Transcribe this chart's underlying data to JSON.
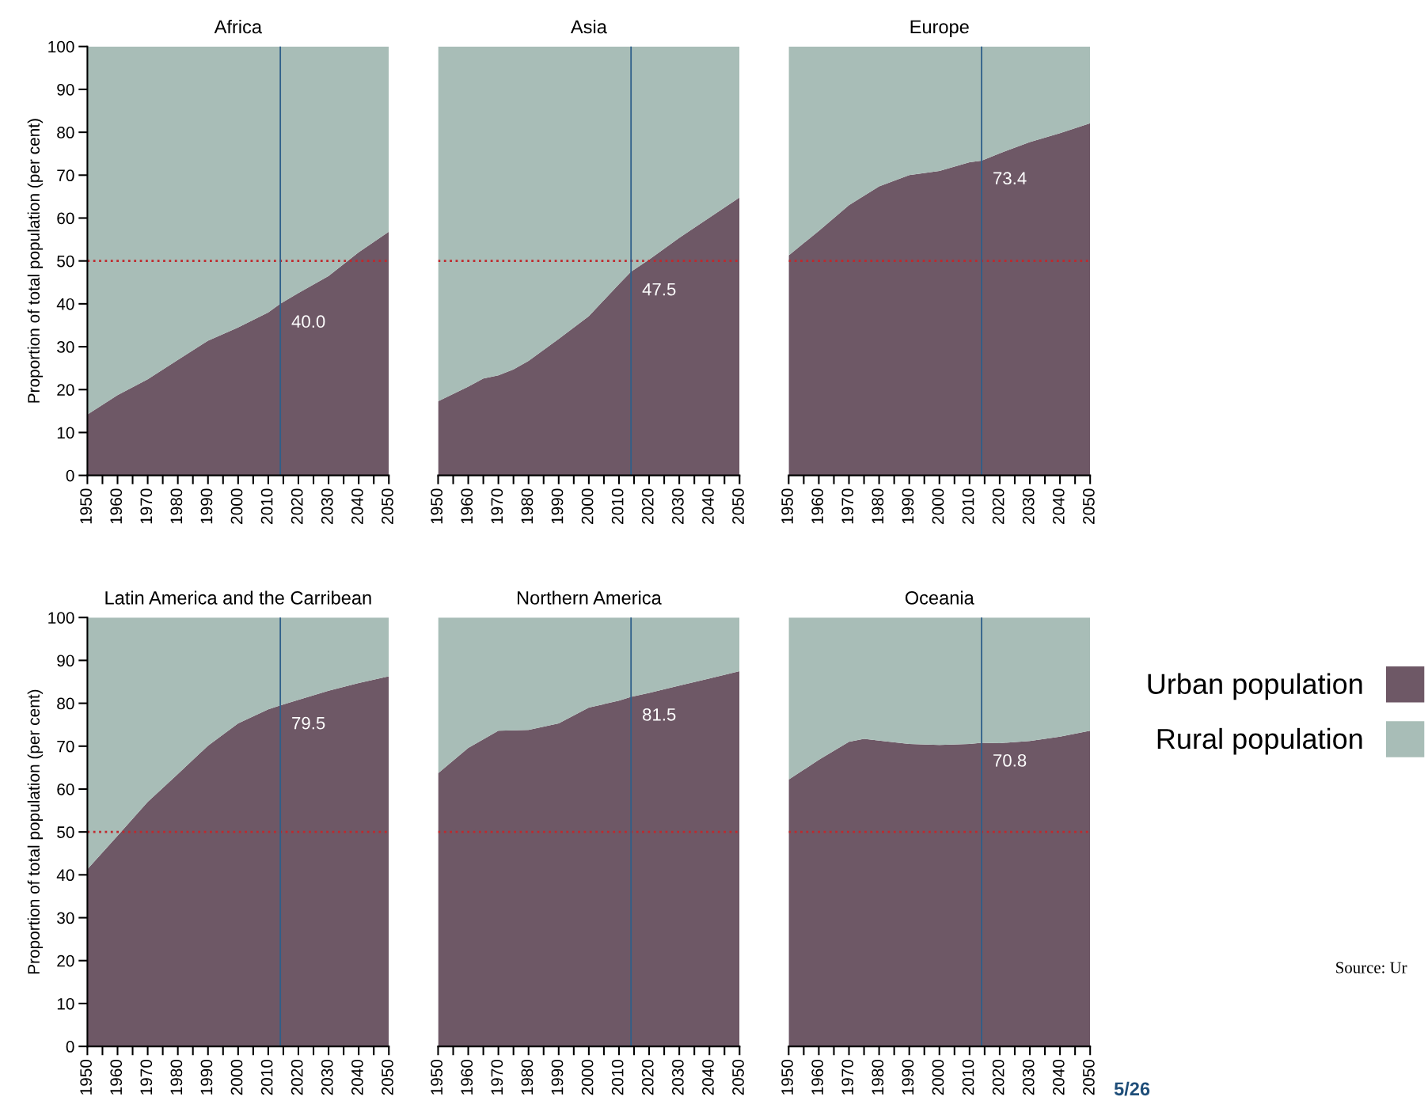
{
  "chart_data": [
    {
      "type": "area",
      "title": "Africa",
      "ylabel": "Proportion of total population (per cent)",
      "stacked": true,
      "legend": false,
      "x": [
        1950,
        1960,
        1970,
        1980,
        1990,
        2000,
        2010,
        2014,
        2020,
        2030,
        2040,
        2050
      ],
      "series": [
        {
          "color": "#6e5866",
          "values": [
            14.2,
            18.7,
            22.4,
            26.9,
            31.4,
            34.5,
            38.0,
            40.0,
            42.5,
            46.5,
            52.0,
            56.8
          ],
          "value_labels": [
            null,
            null,
            null,
            null,
            null,
            null,
            null,
            "40.0",
            null,
            null,
            null,
            null
          ]
        },
        {
          "color": "#a8bdb7",
          "values": [
            85.8,
            81.3,
            77.6,
            73.1,
            68.6,
            65.5,
            62.0,
            60.0,
            57.5,
            53.5,
            48.0,
            43.2
          ]
        }
      ],
      "xlim": [
        1950,
        2050
      ],
      "ylim": [
        0,
        100
      ],
      "xticks": [
        1950,
        {
          "value": 1955,
          "label": null
        },
        1960,
        {
          "value": 1965,
          "label": null
        },
        1970,
        {
          "value": 1975,
          "label": null
        },
        1980,
        {
          "value": 1985,
          "label": null
        },
        1990,
        {
          "value": 1995,
          "label": null
        },
        2000,
        {
          "value": 2005,
          "label": null
        },
        2010,
        {
          "value": 2015,
          "label": null
        },
        2020,
        {
          "value": 2025,
          "label": null
        },
        2030,
        {
          "value": 2035,
          "label": null
        },
        2040,
        {
          "value": 2045,
          "label": null
        },
        2050
      ],
      "yticks": [
        0,
        10,
        20,
        30,
        40,
        50,
        60,
        70,
        80,
        90,
        100
      ],
      "ref_lines": [
        {
          "axis": "y",
          "value": 50,
          "color": "#c0282d",
          "line_style": "dotted"
        },
        {
          "axis": "x",
          "value": 2014,
          "color": "#2f5f8a",
          "line_style": "solid"
        }
      ]
    },
    {
      "type": "area",
      "title": "Asia",
      "stacked": true,
      "legend": false,
      "tick_labels": "x",
      "x": [
        1950,
        1960,
        1965,
        1970,
        1975,
        1980,
        1990,
        2000,
        2010,
        2014,
        2020,
        2030,
        2040,
        2050
      ],
      "series": [
        {
          "color": "#6e5866",
          "values": [
            17.3,
            20.7,
            22.6,
            23.3,
            24.7,
            26.7,
            31.8,
            37.1,
            44.6,
            47.5,
            50.3,
            55.4,
            60.1,
            64.8
          ],
          "value_labels": [
            null,
            null,
            null,
            null,
            null,
            null,
            null,
            null,
            null,
            "47.5",
            null,
            null,
            null,
            null
          ]
        },
        {
          "color": "#a8bdb7",
          "values": [
            82.7,
            79.3,
            77.4,
            76.7,
            75.3,
            73.3,
            68.2,
            62.9,
            55.4,
            52.5,
            49.7,
            44.6,
            39.9,
            35.2
          ]
        }
      ],
      "xlim": [
        1950,
        2050
      ],
      "ylim": [
        0,
        100
      ],
      "xticks": [
        1950,
        {
          "value": 1955,
          "label": null
        },
        1960,
        {
          "value": 1965,
          "label": null
        },
        1970,
        {
          "value": 1975,
          "label": null
        },
        1980,
        {
          "value": 1985,
          "label": null
        },
        1990,
        {
          "value": 1995,
          "label": null
        },
        2000,
        {
          "value": 2005,
          "label": null
        },
        2010,
        {
          "value": 2015,
          "label": null
        },
        2020,
        {
          "value": 2025,
          "label": null
        },
        2030,
        {
          "value": 2035,
          "label": null
        },
        2040,
        {
          "value": 2045,
          "label": null
        },
        2050
      ],
      "ref_lines": [
        {
          "axis": "y",
          "value": 50,
          "color": "#c0282d",
          "line_style": "dotted"
        },
        {
          "axis": "x",
          "value": 2014,
          "color": "#2f5f8a",
          "line_style": "solid"
        }
      ]
    },
    {
      "type": "area",
      "title": "Europe",
      "stacked": true,
      "legend": false,
      "tick_labels": "x",
      "x": [
        1950,
        1960,
        1970,
        1980,
        1990,
        2000,
        2010,
        2014,
        2020,
        2030,
        2040,
        2050
      ],
      "series": [
        {
          "color": "#6e5866",
          "values": [
            51.3,
            57.0,
            63.0,
            67.4,
            70.0,
            71.0,
            73.0,
            73.4,
            75.1,
            77.7,
            79.8,
            82.1
          ],
          "value_labels": [
            null,
            null,
            null,
            null,
            null,
            null,
            null,
            "73.4",
            null,
            null,
            null,
            null
          ]
        },
        {
          "color": "#a8bdb7",
          "values": [
            48.7,
            43.0,
            37.0,
            32.6,
            30.0,
            29.0,
            27.0,
            26.6,
            24.9,
            22.3,
            20.2,
            17.9
          ]
        }
      ],
      "xlim": [
        1950,
        2050
      ],
      "ylim": [
        0,
        100
      ],
      "xticks": [
        1950,
        {
          "value": 1955,
          "label": null
        },
        1960,
        {
          "value": 1965,
          "label": null
        },
        1970,
        {
          "value": 1975,
          "label": null
        },
        1980,
        {
          "value": 1985,
          "label": null
        },
        1990,
        {
          "value": 1995,
          "label": null
        },
        2000,
        {
          "value": 2005,
          "label": null
        },
        2010,
        {
          "value": 2015,
          "label": null
        },
        2020,
        {
          "value": 2025,
          "label": null
        },
        2030,
        {
          "value": 2035,
          "label": null
        },
        2040,
        {
          "value": 2045,
          "label": null
        },
        2050
      ],
      "ref_lines": [
        {
          "axis": "y",
          "value": 50,
          "color": "#c0282d",
          "line_style": "dotted"
        },
        {
          "axis": "x",
          "value": 2014,
          "color": "#2f5f8a",
          "line_style": "solid"
        }
      ]
    },
    {
      "type": "area",
      "title": "Latin America and the Carribean",
      "ylabel": "Proportion of total population (per cent)",
      "stacked": true,
      "legend": false,
      "x": [
        1950,
        1960,
        1970,
        1980,
        1990,
        2000,
        2010,
        2014,
        2020,
        2030,
        2040,
        2050
      ],
      "series": [
        {
          "color": "#6e5866",
          "values": [
            41.3,
            49.1,
            57.0,
            63.5,
            70.1,
            75.3,
            78.6,
            79.5,
            80.8,
            82.9,
            84.7,
            86.3
          ],
          "value_labels": [
            null,
            null,
            null,
            null,
            null,
            null,
            null,
            "79.5",
            null,
            null,
            null,
            null
          ]
        },
        {
          "color": "#a8bdb7",
          "values": [
            58.7,
            50.9,
            43.0,
            36.5,
            29.9,
            24.7,
            21.4,
            20.5,
            19.2,
            17.1,
            15.3,
            13.7
          ]
        }
      ],
      "xlim": [
        1950,
        2050
      ],
      "ylim": [
        0,
        100
      ],
      "xticks": [
        1950,
        {
          "value": 1955,
          "label": null
        },
        1960,
        {
          "value": 1965,
          "label": null
        },
        1970,
        {
          "value": 1975,
          "label": null
        },
        1980,
        {
          "value": 1985,
          "label": null
        },
        1990,
        {
          "value": 1995,
          "label": null
        },
        2000,
        {
          "value": 2005,
          "label": null
        },
        2010,
        {
          "value": 2015,
          "label": null
        },
        2020,
        {
          "value": 2025,
          "label": null
        },
        2030,
        {
          "value": 2035,
          "label": null
        },
        2040,
        {
          "value": 2045,
          "label": null
        },
        2050
      ],
      "yticks": [
        0,
        10,
        20,
        30,
        40,
        50,
        60,
        70,
        80,
        90,
        100
      ],
      "ref_lines": [
        {
          "axis": "y",
          "value": 50,
          "color": "#c0282d",
          "line_style": "dotted"
        },
        {
          "axis": "x",
          "value": 2014,
          "color": "#2f5f8a",
          "line_style": "solid"
        }
      ]
    },
    {
      "type": "area",
      "title": "Northern America",
      "stacked": true,
      "legend": false,
      "tick_labels": "x",
      "x": [
        1950,
        1960,
        1970,
        1980,
        1990,
        2000,
        2010,
        2014,
        2020,
        2030,
        2040,
        2050
      ],
      "series": [
        {
          "color": "#6e5866",
          "values": [
            63.7,
            69.6,
            73.6,
            73.8,
            75.3,
            79.0,
            80.6,
            81.5,
            82.4,
            84.1,
            85.8,
            87.5
          ],
          "value_labels": [
            null,
            null,
            null,
            null,
            null,
            null,
            null,
            "81.5",
            null,
            null,
            null,
            null
          ]
        },
        {
          "color": "#a8bdb7",
          "values": [
            36.3,
            30.4,
            26.4,
            26.2,
            24.7,
            21.0,
            19.4,
            18.5,
            17.6,
            15.9,
            14.2,
            12.5
          ]
        }
      ],
      "xlim": [
        1950,
        2050
      ],
      "ylim": [
        0,
        100
      ],
      "xticks": [
        1950,
        {
          "value": 1955,
          "label": null
        },
        1960,
        {
          "value": 1965,
          "label": null
        },
        1970,
        {
          "value": 1975,
          "label": null
        },
        1980,
        {
          "value": 1985,
          "label": null
        },
        1990,
        {
          "value": 1995,
          "label": null
        },
        2000,
        {
          "value": 2005,
          "label": null
        },
        2010,
        {
          "value": 2015,
          "label": null
        },
        2020,
        {
          "value": 2025,
          "label": null
        },
        2030,
        {
          "value": 2035,
          "label": null
        },
        2040,
        {
          "value": 2045,
          "label": null
        },
        2050
      ],
      "ref_lines": [
        {
          "axis": "y",
          "value": 50,
          "color": "#c0282d",
          "line_style": "dotted"
        },
        {
          "axis": "x",
          "value": 2014,
          "color": "#2f5f8a",
          "line_style": "solid"
        }
      ]
    },
    {
      "type": "area",
      "title": "Oceania",
      "stacked": true,
      "legend": "right",
      "tick_labels": "x",
      "x": [
        1950,
        1960,
        1970,
        1975,
        1980,
        1990,
        2000,
        2010,
        2014,
        2020,
        2030,
        2040,
        2050
      ],
      "series": [
        {
          "name": "Urban population",
          "color": "#6e5866",
          "values": [
            62.2,
            66.8,
            71.0,
            71.7,
            71.3,
            70.5,
            70.3,
            70.5,
            70.8,
            70.7,
            71.2,
            72.2,
            73.6
          ],
          "value_labels": [
            null,
            null,
            null,
            null,
            null,
            null,
            null,
            null,
            "70.8",
            null,
            null,
            null,
            null
          ]
        },
        {
          "name": "Rural population",
          "color": "#a8bdb7",
          "values": [
            37.8,
            33.2,
            29.0,
            28.3,
            28.7,
            29.5,
            29.7,
            29.5,
            29.2,
            29.3,
            28.8,
            27.8,
            26.4
          ]
        }
      ],
      "xlim": [
        1950,
        2050
      ],
      "ylim": [
        0,
        100
      ],
      "xticks": [
        1950,
        {
          "value": 1955,
          "label": null
        },
        1960,
        {
          "value": 1965,
          "label": null
        },
        1970,
        {
          "value": 1975,
          "label": null
        },
        1980,
        {
          "value": 1985,
          "label": null
        },
        1990,
        {
          "value": 1995,
          "label": null
        },
        2000,
        {
          "value": 2005,
          "label": null
        },
        2010,
        {
          "value": 2015,
          "label": null
        },
        2020,
        {
          "value": 2025,
          "label": null
        },
        2030,
        {
          "value": 2035,
          "label": null
        },
        2040,
        {
          "value": 2045,
          "label": null
        },
        2050
      ],
      "ref_lines": [
        {
          "axis": "y",
          "value": 50,
          "color": "#c0282d",
          "line_style": "dotted"
        },
        {
          "axis": "x",
          "value": 2014,
          "color": "#2f5f8a",
          "line_style": "solid"
        }
      ],
      "annotations": [
        "Source: Ur",
        "5/26"
      ]
    }
  ]
}
